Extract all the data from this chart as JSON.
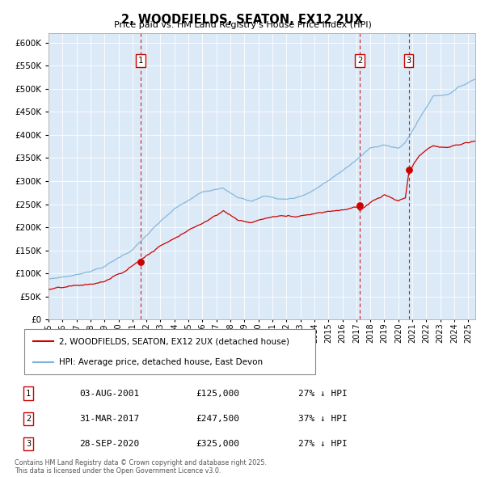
{
  "title": "2, WOODFIELDS, SEATON, EX12 2UX",
  "subtitle": "Price paid vs. HM Land Registry's House Price Index (HPI)",
  "ylim": [
    0,
    620000
  ],
  "yticks": [
    0,
    50000,
    100000,
    150000,
    200000,
    250000,
    300000,
    350000,
    400000,
    450000,
    500000,
    550000,
    600000
  ],
  "xlim_start": 1995.0,
  "xlim_end": 2025.5,
  "background_color": "#dce9f7",
  "hpi_color": "#7ab3d9",
  "price_color": "#cc0000",
  "dashed_line_color": "#cc0000",
  "legend_label_red": "2, WOODFIELDS, SEATON, EX12 2UX (detached house)",
  "legend_label_blue": "HPI: Average price, detached house, East Devon",
  "transactions": [
    {
      "num": 1,
      "date_x": 2001.58,
      "price": 125000,
      "label": "03-AUG-2001",
      "pct": "27% ↓ HPI"
    },
    {
      "num": 2,
      "date_x": 2017.25,
      "price": 247500,
      "label": "31-MAR-2017",
      "pct": "37% ↓ HPI"
    },
    {
      "num": 3,
      "date_x": 2020.75,
      "price": 325000,
      "label": "28-SEP-2020",
      "pct": "27% ↓ HPI"
    }
  ],
  "footer_line1": "Contains HM Land Registry data © Crown copyright and database right 2025.",
  "footer_line2": "This data is licensed under the Open Government Licence v3.0."
}
